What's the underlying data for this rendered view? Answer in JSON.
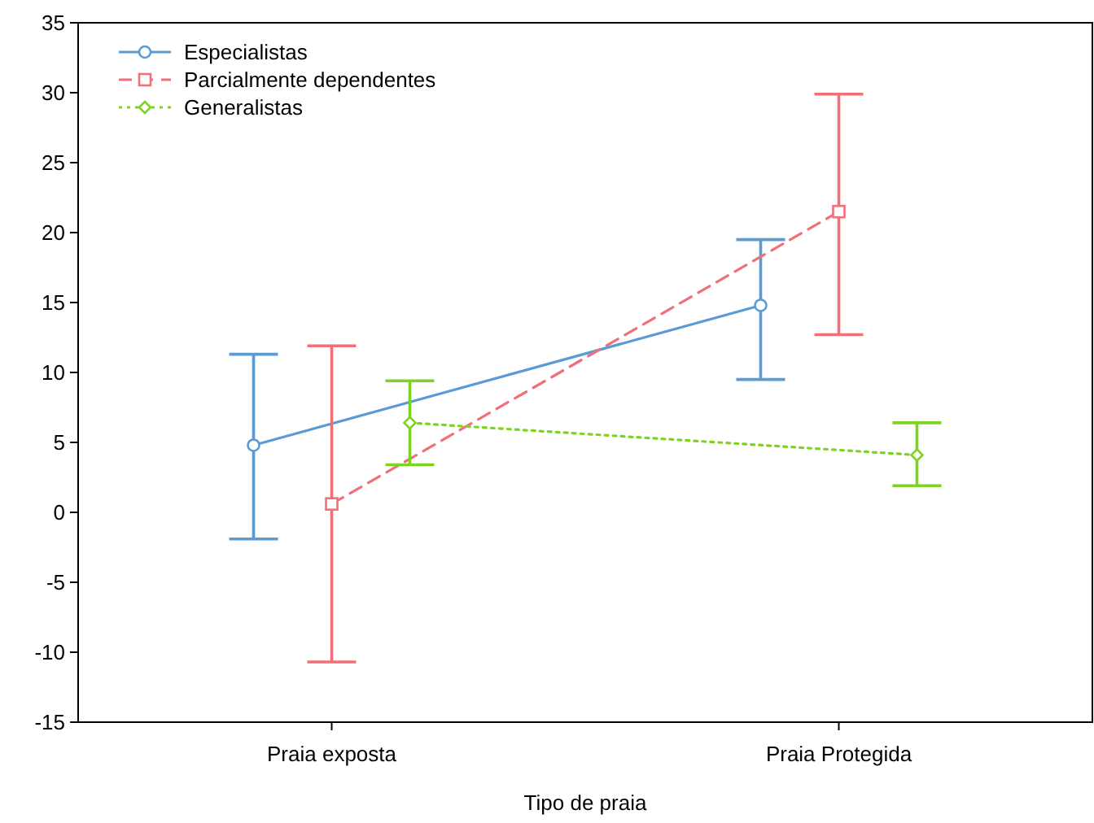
{
  "chart_data": {
    "type": "line",
    "xlabel": "Tipo de praia",
    "categories": [
      "Praia exposta",
      "Praia Protegida"
    ],
    "ylim": [
      -15,
      35
    ],
    "yticks": [
      -15,
      -10,
      -5,
      0,
      5,
      10,
      15,
      20,
      25,
      30,
      35
    ],
    "legend": "top left",
    "series": [
      {
        "name": "Especialistas",
        "color": "#5b9bd5",
        "values": [
          4.8,
          14.8
        ],
        "errors": [
          [
            -1.9,
            11.3
          ],
          [
            9.5,
            19.5
          ]
        ],
        "marker": "circle",
        "line_style": "solid"
      },
      {
        "name": "Parcialmente dependentes",
        "color": "#f0707a",
        "values": [
          0.6,
          21.5
        ],
        "errors": [
          [
            -10.7,
            11.9
          ],
          [
            12.7,
            29.9
          ]
        ],
        "marker": "square",
        "line_style": "dashed"
      },
      {
        "name": "Generalistas",
        "color": "#7ed321",
        "values": [
          6.4,
          4.1
        ],
        "errors": [
          [
            3.4,
            9.4
          ],
          [
            1.9,
            6.4
          ]
        ],
        "marker": "diamond",
        "line_style": "dotted"
      }
    ]
  }
}
